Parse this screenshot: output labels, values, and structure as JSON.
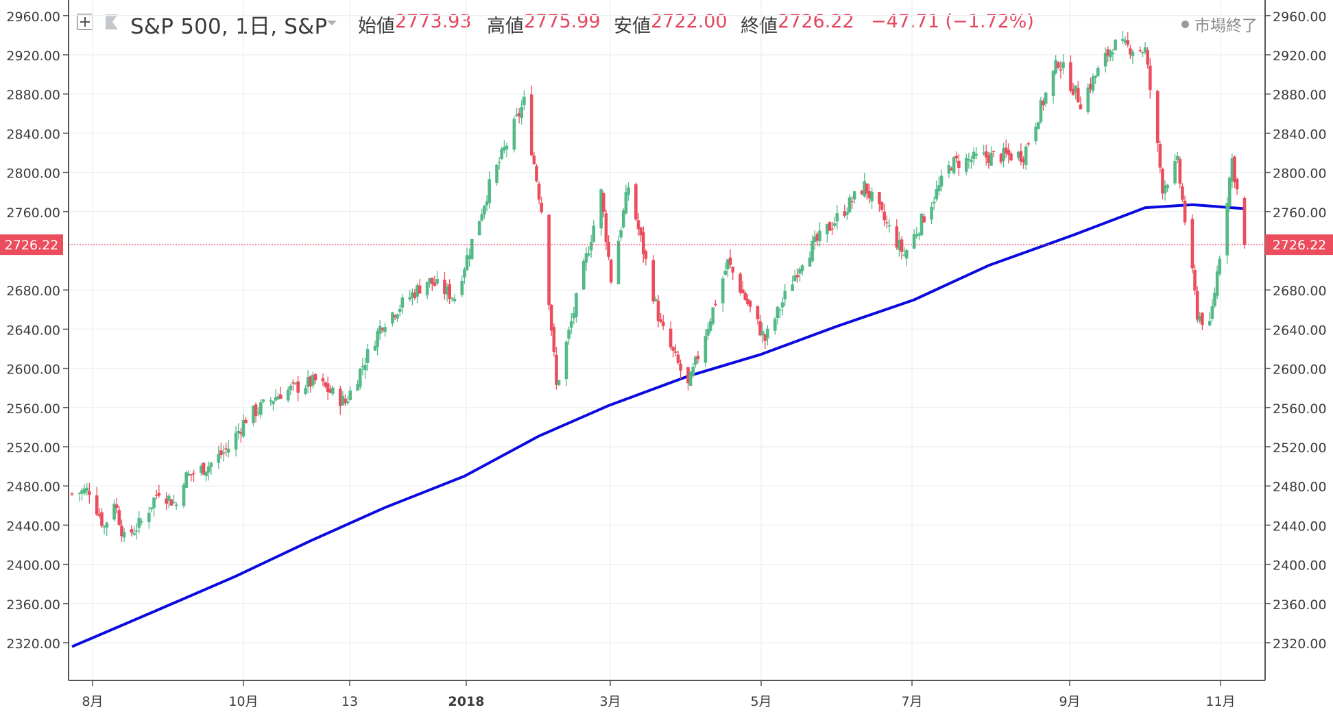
{
  "header": {
    "symbol": "S&P 500, 1日, S&P",
    "open_label": "始値",
    "open_value": "2773.93",
    "high_label": "高値",
    "high_value": "2775.99",
    "low_label": "安値",
    "low_value": "2722.00",
    "close_label": "終値",
    "close_value": "2726.22",
    "change": "−47.71 (−1.72%)",
    "status": "市場終了"
  },
  "colors": {
    "up": "#53b987",
    "down": "#eb4d5c",
    "ma_line": "#0a0adf",
    "grid": "#eef1f3",
    "axis": "#555555",
    "price_tag": "#eb4d5c"
  },
  "chart_data": {
    "type": "candlestick",
    "y_ticks": [
      "2960.00",
      "2920.00",
      "2880.00",
      "2840.00",
      "2800.00",
      "2760.00",
      "2680.00",
      "2640.00",
      "2600.00",
      "2560.00",
      "2520.00",
      "2480.00",
      "2440.00",
      "2400.00",
      "2360.00",
      "2320.00"
    ],
    "x_ticks": [
      "8月",
      "10月",
      "13",
      "2018",
      "3月",
      "5月",
      "7月",
      "9月",
      "11月"
    ],
    "current_price": "2726.22",
    "ylim": [
      2286,
      3000
    ],
    "grid": true,
    "ohlc_anchors": [
      {
        "d": "2017-07-28",
        "c": 2472
      },
      {
        "d": "2017-08-04",
        "c": 2476
      },
      {
        "d": "2017-08-10",
        "c": 2438
      },
      {
        "d": "2017-08-14",
        "c": 2466
      },
      {
        "d": "2017-08-18",
        "c": 2426
      },
      {
        "d": "2017-08-25",
        "c": 2443
      },
      {
        "d": "2017-09-01",
        "c": 2476
      },
      {
        "d": "2017-09-08",
        "c": 2461
      },
      {
        "d": "2017-09-11",
        "c": 2488
      },
      {
        "d": "2017-09-21",
        "c": 2501
      },
      {
        "d": "2017-09-29",
        "c": 2519
      },
      {
        "d": "2017-10-06",
        "c": 2549
      },
      {
        "d": "2017-10-20",
        "c": 2575
      },
      {
        "d": "2017-11-03",
        "c": 2587
      },
      {
        "d": "2017-11-15",
        "c": 2565
      },
      {
        "d": "2017-11-30",
        "c": 2647
      },
      {
        "d": "2017-12-18",
        "c": 2690
      },
      {
        "d": "2017-12-29",
        "c": 2673
      },
      {
        "d": "2018-01-12",
        "c": 2786
      },
      {
        "d": "2018-01-26",
        "c": 2872
      },
      {
        "d": "2018-02-02",
        "c": 2762
      },
      {
        "d": "2018-02-08",
        "c": 2581
      },
      {
        "d": "2018-02-26",
        "c": 2779
      },
      {
        "d": "2018-03-02",
        "c": 2691
      },
      {
        "d": "2018-03-09",
        "c": 2786
      },
      {
        "d": "2018-03-22",
        "c": 2643
      },
      {
        "d": "2018-04-02",
        "c": 2581
      },
      {
        "d": "2018-04-18",
        "c": 2708
      },
      {
        "d": "2018-05-03",
        "c": 2629
      },
      {
        "d": "2018-05-18",
        "c": 2712
      },
      {
        "d": "2018-06-12",
        "c": 2786
      },
      {
        "d": "2018-06-28",
        "c": 2716
      },
      {
        "d": "2018-07-17",
        "c": 2809
      },
      {
        "d": "2018-07-31",
        "c": 2816
      },
      {
        "d": "2018-08-15",
        "c": 2818
      },
      {
        "d": "2018-08-29",
        "c": 2914
      },
      {
        "d": "2018-09-07",
        "c": 2872
      },
      {
        "d": "2018-09-20",
        "c": 2930
      },
      {
        "d": "2018-10-03",
        "c": 2925
      },
      {
        "d": "2018-10-10",
        "c": 2785
      },
      {
        "d": "2018-10-16",
        "c": 2809
      },
      {
        "d": "2018-10-24",
        "c": 2656
      },
      {
        "d": "2018-10-29",
        "c": 2641
      },
      {
        "d": "2018-11-07",
        "c": 2813
      },
      {
        "d": "2018-11-09",
        "c": 2781
      },
      {
        "d": "2018-11-12",
        "c": 2726.22
      }
    ],
    "ma_line": [
      {
        "d": "2017-07-28",
        "v": 2316
      },
      {
        "d": "2017-09-01",
        "v": 2354
      },
      {
        "d": "2017-10-02",
        "v": 2388
      },
      {
        "d": "2017-11-01",
        "v": 2424
      },
      {
        "d": "2017-12-01",
        "v": 2458
      },
      {
        "d": "2018-01-02",
        "v": 2490
      },
      {
        "d": "2018-02-01",
        "v": 2531
      },
      {
        "d": "2018-03-01",
        "v": 2562
      },
      {
        "d": "2018-04-02",
        "v": 2592
      },
      {
        "d": "2018-05-01",
        "v": 2614
      },
      {
        "d": "2018-06-01",
        "v": 2643
      },
      {
        "d": "2018-07-02",
        "v": 2670
      },
      {
        "d": "2018-08-01",
        "v": 2705
      },
      {
        "d": "2018-09-04",
        "v": 2736
      },
      {
        "d": "2018-10-03",
        "v": 2764
      },
      {
        "d": "2018-10-22",
        "v": 2767
      },
      {
        "d": "2018-11-12",
        "v": 2763
      }
    ]
  }
}
